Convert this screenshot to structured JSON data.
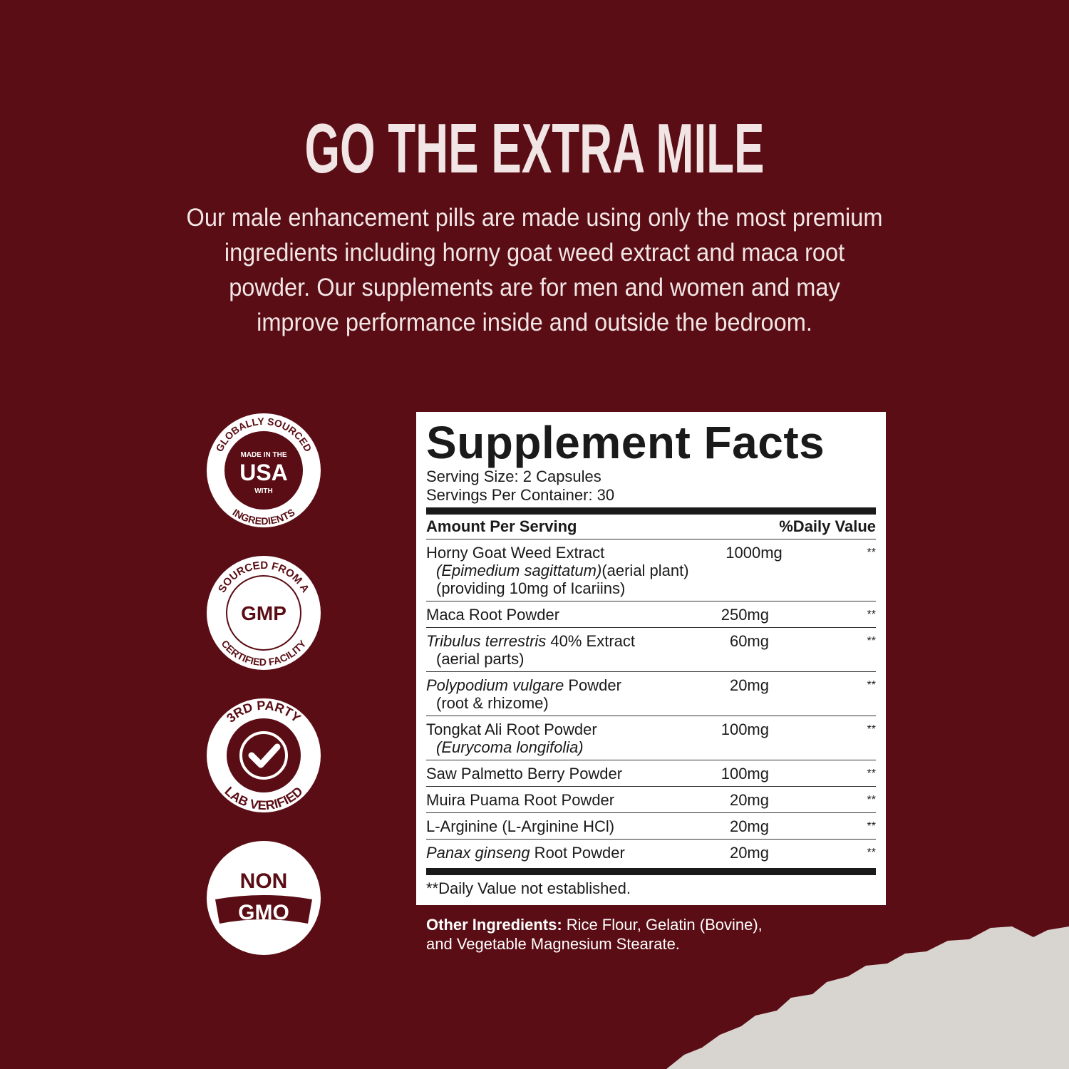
{
  "header": {
    "title": "GO THE EXTRA MILE",
    "body": [
      "Our male enhancement pills are made using only the most premium",
      "ingredients including horny goat weed extract and maca root",
      "powder. Our supplements are for men and women and may",
      "improve performance inside and outside the bedroom."
    ]
  },
  "badges": [
    {
      "top": "GLOBALLY SOURCED",
      "center": [
        "MADE IN THE",
        "USA",
        "WITH"
      ],
      "bottom": "INGREDIENTS"
    },
    {
      "top": "SOURCED FROM A",
      "center": [
        "GMP"
      ],
      "bottom": "CERTIFIED FACILITY"
    },
    {
      "top": "3RD PARTY",
      "bottom": "LAB VERIFIED"
    },
    {
      "center": [
        "NON",
        "GMO"
      ]
    }
  ],
  "facts": {
    "title": "Supplement Facts",
    "serving_size": "Serving Size: 2 Capsules",
    "servings_per_container": "Servings Per Container: 30",
    "columns": [
      "Amount Per Serving",
      "%Daily Value"
    ],
    "rows": [
      {
        "lines": [
          [
            {
              "text": "Horny Goat Weed Extract"
            }
          ],
          [
            {
              "text": "(Epimedium sagittatum)",
              "italic": true
            },
            {
              "text": "(aerial plant)"
            }
          ],
          [
            {
              "text": "(providing 10mg of Icariins)"
            }
          ]
        ],
        "amount": "1000mg",
        "dv": "**"
      },
      {
        "lines": [
          [
            {
              "text": "Maca Root Powder"
            }
          ]
        ],
        "amount": "250mg",
        "dv": "**"
      },
      {
        "lines": [
          [
            {
              "text": "Tribulus terrestris",
              "italic": true
            },
            {
              "text": " 40% Extract"
            }
          ],
          [
            {
              "text": "(aerial parts)"
            }
          ]
        ],
        "amount": "60mg",
        "dv": "**"
      },
      {
        "lines": [
          [
            {
              "text": "Polypodium vulgare",
              "italic": true
            },
            {
              "text": " Powder"
            }
          ],
          [
            {
              "text": "(root & rhizome)"
            }
          ]
        ],
        "amount": "20mg",
        "dv": "**"
      },
      {
        "lines": [
          [
            {
              "text": "Tongkat Ali Root Powder"
            }
          ],
          [
            {
              "text": "(Eurycoma longifolia)",
              "italic": true
            }
          ]
        ],
        "amount": "100mg",
        "dv": "**"
      },
      {
        "lines": [
          [
            {
              "text": "Saw Palmetto Berry Powder"
            }
          ]
        ],
        "amount": "100mg",
        "dv": "**"
      },
      {
        "lines": [
          [
            {
              "text": "Muira Puama Root Powder"
            }
          ]
        ],
        "amount": "20mg",
        "dv": "**"
      },
      {
        "lines": [
          [
            {
              "text": "L-Arginine (L-Arginine HCl)"
            }
          ]
        ],
        "amount": "20mg",
        "dv": "**"
      },
      {
        "lines": [
          [
            {
              "text": "Panax ginseng",
              "italic": true
            },
            {
              "text": " Root Powder"
            }
          ]
        ],
        "amount": "20mg",
        "dv": "**"
      }
    ],
    "footnote": "**Daily Value not established.",
    "other": {
      "label": "Other Ingredients:",
      "lines": [
        "Rice Flour, Gelatin (Bovine),",
        "and Vegetable Magnesium Stearate."
      ]
    }
  }
}
